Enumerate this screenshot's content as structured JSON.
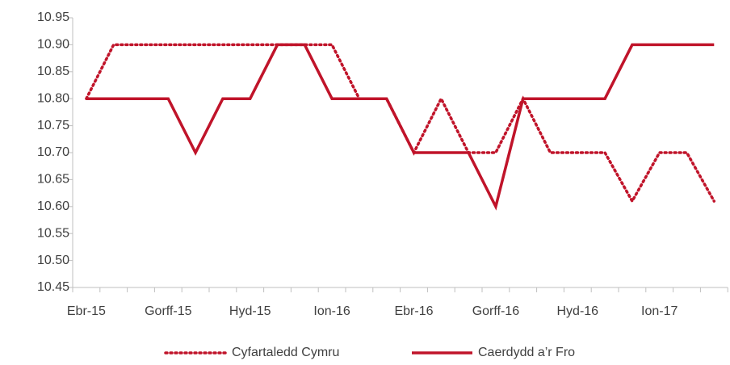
{
  "chart_data": {
    "type": "line",
    "categories": [
      "Ebr-15",
      null,
      null,
      "Gorff-15",
      null,
      null,
      "Hyd-15",
      null,
      null,
      "Ion-16",
      null,
      null,
      "Ebr-16",
      null,
      null,
      "Gorff-16",
      null,
      null,
      "Hyd-16",
      null,
      null,
      "Ion-17",
      null,
      null
    ],
    "series": [
      {
        "name": "Cyfartaledd Cymru",
        "color": "#c0142a",
        "dash": "dotted",
        "values": [
          10.8,
          10.9,
          10.9,
          10.9,
          10.9,
          10.9,
          10.9,
          10.9,
          10.9,
          10.9,
          10.8,
          10.8,
          10.7,
          10.8,
          10.7,
          10.7,
          10.8,
          10.7,
          10.7,
          10.7,
          10.61,
          10.7,
          10.7,
          10.61
        ]
      },
      {
        "name": "Caerdydd a’r Fro",
        "color": "#c0142a",
        "dash": "solid",
        "values": [
          10.8,
          10.8,
          10.8,
          10.8,
          10.7,
          10.8,
          10.8,
          10.9,
          10.9,
          10.8,
          10.8,
          10.8,
          10.7,
          10.7,
          10.7,
          10.6,
          10.8,
          10.8,
          10.8,
          10.8,
          10.9,
          10.9,
          10.9,
          10.9
        ]
      }
    ],
    "ylim": [
      10.45,
      10.95
    ],
    "yticks": [
      {
        "value": 10.45,
        "label": "10.45"
      },
      {
        "value": 10.5,
        "label": "10.50"
      },
      {
        "value": 10.55,
        "label": "10.55"
      },
      {
        "value": 10.6,
        "label": "10.60"
      },
      {
        "value": 10.65,
        "label": "10.65"
      },
      {
        "value": 10.7,
        "label": "10.70"
      },
      {
        "value": 10.75,
        "label": "10.75"
      },
      {
        "value": 10.8,
        "label": "10.80"
      },
      {
        "value": 10.85,
        "label": "10.85"
      },
      {
        "value": 10.9,
        "label": "10.90"
      },
      {
        "value": 10.95,
        "label": "10.95"
      }
    ],
    "grid": false,
    "legend": "bottom"
  }
}
